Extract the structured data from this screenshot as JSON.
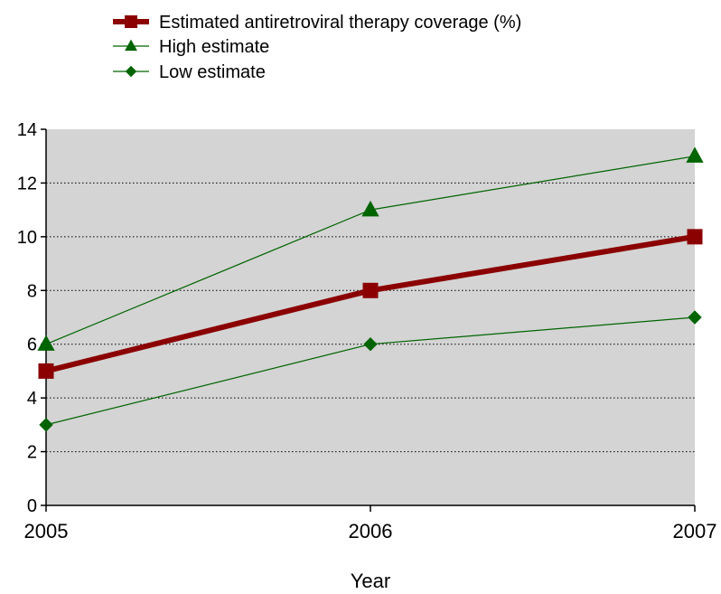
{
  "chart_data": {
    "type": "line",
    "xlabel": "Year",
    "ylabel": "",
    "x": [
      "2005",
      "2006",
      "2007"
    ],
    "ylim": [
      0,
      14
    ],
    "yticks": [
      0,
      2,
      4,
      6,
      8,
      10,
      12,
      14
    ],
    "grid": true,
    "legend_position": "top-left",
    "plot_background": "#d4d4d4",
    "series": [
      {
        "name": "Estimated antiretroviral therapy coverage (%)",
        "values": [
          5,
          8,
          10
        ],
        "color": "#8b0000",
        "marker": "square"
      },
      {
        "name": "High estimate",
        "values": [
          6,
          11,
          13
        ],
        "color": "#006400",
        "marker": "triangle"
      },
      {
        "name": "Low estimate",
        "values": [
          3,
          6,
          7
        ],
        "color": "#006400",
        "marker": "diamond"
      }
    ]
  }
}
